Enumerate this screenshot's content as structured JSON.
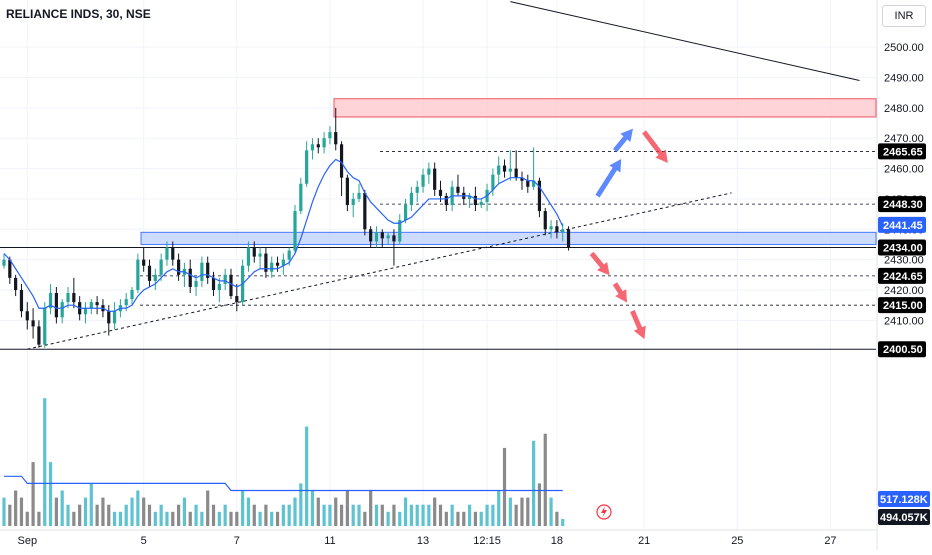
{
  "header": {
    "title": "RELIANCE INDS, 30, NSE",
    "currency": "INR"
  },
  "chart_data": {
    "type": "candlestick",
    "symbol": "RELIANCE INDS",
    "interval": "30",
    "exchange": "NSE",
    "currency": "INR",
    "ylim": [
      2392,
      2504
    ],
    "y_ticks": [
      2500,
      2490,
      2480,
      2470,
      2460,
      2450,
      2440,
      2430,
      2420,
      2410
    ],
    "x_ticks": [
      {
        "label": "Sep",
        "i": 4
      },
      {
        "label": "5",
        "i": 24
      },
      {
        "label": "7",
        "i": 40
      },
      {
        "label": "11",
        "i": 56
      },
      {
        "label": "13",
        "i": 72
      },
      {
        "label": "12:15",
        "i": 83
      },
      {
        "label": "18",
        "i": 95
      },
      {
        "label": "21",
        "i": 110
      },
      {
        "label": "25",
        "i": 126
      },
      {
        "label": "27",
        "i": 142
      }
    ],
    "candles": [
      [
        2428,
        2432,
        2427,
        2430
      ],
      [
        2430,
        2431,
        2422,
        2424
      ],
      [
        2424,
        2425,
        2418,
        2420
      ],
      [
        2420,
        2422,
        2411,
        2413
      ],
      [
        2413,
        2416,
        2407,
        2410
      ],
      [
        2410,
        2414,
        2404,
        2408
      ],
      [
        2408,
        2410,
        2401,
        2402
      ],
      [
        2402,
        2416,
        2401,
        2414
      ],
      [
        2414,
        2422,
        2412,
        2419
      ],
      [
        2419,
        2421,
        2409,
        2411
      ],
      [
        2411,
        2417,
        2409,
        2416
      ],
      [
        2416,
        2421,
        2414,
        2419
      ],
      [
        2419,
        2424,
        2414,
        2416
      ],
      [
        2416,
        2418,
        2410,
        2412
      ],
      [
        2412,
        2416,
        2409,
        2414
      ],
      [
        2414,
        2417,
        2412,
        2416
      ],
      [
        2416,
        2418,
        2412,
        2415
      ],
      [
        2415,
        2417,
        2411,
        2413
      ],
      [
        2413,
        2415,
        2405,
        2409
      ],
      [
        2409,
        2416,
        2407,
        2413
      ],
      [
        2413,
        2417,
        2411,
        2415
      ],
      [
        2415,
        2419,
        2413,
        2417
      ],
      [
        2417,
        2421,
        2415,
        2420
      ],
      [
        2420,
        2432,
        2419,
        2430
      ],
      [
        2430,
        2434,
        2426,
        2428
      ],
      [
        2428,
        2430,
        2421,
        2423
      ],
      [
        2423,
        2427,
        2420,
        2425
      ],
      [
        2425,
        2432,
        2423,
        2430
      ],
      [
        2430,
        2436,
        2428,
        2434
      ],
      [
        2434,
        2436,
        2428,
        2430
      ],
      [
        2430,
        2432,
        2423,
        2425
      ],
      [
        2425,
        2429,
        2421,
        2427
      ],
      [
        2427,
        2430,
        2419,
        2421
      ],
      [
        2421,
        2425,
        2418,
        2423
      ],
      [
        2423,
        2431,
        2421,
        2429
      ],
      [
        2429,
        2431,
        2422,
        2424
      ],
      [
        2424,
        2426,
        2418,
        2420
      ],
      [
        2420,
        2424,
        2416,
        2422
      ],
      [
        2422,
        2427,
        2420,
        2425
      ],
      [
        2425,
        2427,
        2417,
        2418
      ],
      [
        2418,
        2422,
        2413,
        2416
      ],
      [
        2416,
        2430,
        2415,
        2428
      ],
      [
        2428,
        2436,
        2426,
        2434
      ],
      [
        2434,
        2436,
        2429,
        2431
      ],
      [
        2431,
        2434,
        2427,
        2432
      ],
      [
        2432,
        2434,
        2424,
        2426
      ],
      [
        2426,
        2431,
        2424,
        2429
      ],
      [
        2429,
        2431,
        2426,
        2428
      ],
      [
        2428,
        2432,
        2425,
        2430
      ],
      [
        2430,
        2434,
        2428,
        2433
      ],
      [
        2433,
        2448,
        2432,
        2446
      ],
      [
        2446,
        2457,
        2445,
        2455
      ],
      [
        2455,
        2469,
        2454,
        2466
      ],
      [
        2466,
        2470,
        2463,
        2468
      ],
      [
        2468,
        2470,
        2465,
        2467
      ],
      [
        2467,
        2472,
        2465,
        2470
      ],
      [
        2470,
        2474,
        2468,
        2472
      ],
      [
        2472,
        2480,
        2466,
        2468
      ],
      [
        2468,
        2469,
        2451,
        2457
      ],
      [
        2457,
        2458,
        2446,
        2448
      ],
      [
        2448,
        2452,
        2444,
        2450
      ],
      [
        2450,
        2455,
        2449,
        2452
      ],
      [
        2452,
        2453,
        2438,
        2440
      ],
      [
        2440,
        2441,
        2434,
        2436
      ],
      [
        2436,
        2441,
        2434,
        2439
      ],
      [
        2439,
        2440,
        2434,
        2437
      ],
      [
        2437,
        2439,
        2435,
        2438
      ],
      [
        2438,
        2440,
        2428,
        2436
      ],
      [
        2436,
        2445,
        2435,
        2443
      ],
      [
        2443,
        2450,
        2442,
        2448
      ],
      [
        2448,
        2454,
        2446,
        2452
      ],
      [
        2452,
        2456,
        2449,
        2454
      ],
      [
        2454,
        2460,
        2452,
        2458
      ],
      [
        2458,
        2462,
        2455,
        2460
      ],
      [
        2460,
        2462,
        2451,
        2453
      ],
      [
        2453,
        2456,
        2449,
        2451
      ],
      [
        2451,
        2452,
        2446,
        2448
      ],
      [
        2448,
        2456,
        2446,
        2454
      ],
      [
        2454,
        2458,
        2451,
        2452
      ],
      [
        2452,
        2454,
        2448,
        2450
      ],
      [
        2450,
        2452,
        2447,
        2451
      ],
      [
        2451,
        2454,
        2446,
        2448
      ],
      [
        2448,
        2450,
        2447,
        2449
      ],
      [
        2449,
        2455,
        2446,
        2453
      ],
      [
        2453,
        2460,
        2451,
        2458
      ],
      [
        2458,
        2464,
        2455,
        2461
      ],
      [
        2461,
        2463,
        2457,
        2459
      ],
      [
        2459,
        2466,
        2456,
        2460
      ],
      [
        2460,
        2466,
        2456,
        2457
      ],
      [
        2457,
        2459,
        2453,
        2456
      ],
      [
        2456,
        2458,
        2452,
        2454
      ],
      [
        2454,
        2467,
        2453,
        2456
      ],
      [
        2456,
        2457,
        2444,
        2446
      ],
      [
        2446,
        2447,
        2438,
        2440
      ],
      [
        2440,
        2443,
        2437,
        2441
      ],
      [
        2441,
        2443,
        2437,
        2439
      ],
      [
        2439,
        2442,
        2436,
        2440
      ],
      [
        2440,
        2441,
        2433,
        2434
      ]
    ],
    "ema_line": {
      "name": "Moving average",
      "color": "#2962ff",
      "values": [
        2432,
        2430,
        2427,
        2424,
        2421,
        2418,
        2414,
        2414,
        2415,
        2414,
        2414,
        2415,
        2415,
        2414,
        2414,
        2414,
        2414,
        2414,
        2413,
        2413,
        2414,
        2414,
        2415,
        2418,
        2420,
        2421,
        2422,
        2424,
        2426,
        2427,
        2426,
        2426,
        2425,
        2424,
        2425,
        2425,
        2424,
        2423,
        2423,
        2422,
        2421,
        2422,
        2424,
        2426,
        2427,
        2427,
        2427,
        2427,
        2428,
        2429,
        2432,
        2437,
        2443,
        2449,
        2454,
        2458,
        2461,
        2463,
        2462,
        2459,
        2457,
        2456,
        2452,
        2449,
        2447,
        2445,
        2443,
        2442,
        2442,
        2443,
        2444,
        2446,
        2448,
        2450,
        2450,
        2450,
        2450,
        2451,
        2451,
        2451,
        2451,
        2450,
        2450,
        2451,
        2453,
        2455,
        2456,
        2457,
        2457,
        2457,
        2456,
        2456,
        2454,
        2451,
        2448,
        2445,
        2441
      ]
    },
    "volume": {
      "ylabels": [
        "517.128K",
        "494.057K"
      ],
      "values": [
        4,
        3,
        5,
        4,
        2,
        9,
        2,
        18,
        9,
        4,
        5,
        3,
        2,
        3,
        4,
        6,
        3,
        4,
        3,
        2,
        2,
        3,
        4,
        5,
        4,
        3,
        2,
        3,
        2,
        2,
        3,
        4,
        2,
        3,
        2,
        5,
        3,
        2,
        3,
        2,
        2,
        5,
        4,
        3,
        2,
        3,
        2,
        2,
        3,
        3,
        4,
        6,
        14,
        5,
        4,
        3,
        3,
        4,
        3,
        5,
        3,
        3,
        2,
        5,
        3,
        3,
        2,
        3,
        2,
        4,
        3,
        3,
        3,
        3,
        4,
        3,
        2,
        3,
        2,
        2,
        3,
        2,
        2,
        3,
        3,
        5,
        11,
        4,
        3,
        4,
        4,
        12,
        6,
        13,
        4,
        2,
        1
      ],
      "avg": [
        7,
        7,
        7,
        7,
        6,
        6,
        6,
        6,
        6,
        6,
        6,
        6,
        6,
        6,
        6,
        6,
        6,
        6,
        6,
        6,
        6,
        6,
        6,
        6,
        6,
        6,
        6,
        6,
        6,
        6,
        6,
        6,
        6,
        6,
        6,
        6,
        6,
        6,
        6,
        5,
        5,
        5,
        5,
        5,
        5,
        5,
        5,
        5,
        5,
        5,
        5,
        5,
        5,
        5,
        5,
        5,
        5,
        5,
        5,
        5,
        5,
        5,
        5,
        5,
        5,
        5,
        5,
        5,
        5,
        5,
        5,
        5,
        5,
        5,
        5,
        5,
        5,
        5,
        5,
        5,
        5,
        5,
        5,
        5,
        5,
        5,
        5,
        5,
        5,
        5,
        5,
        5,
        5,
        5,
        5,
        5,
        5
      ]
    },
    "zones": [
      {
        "name": "resistance-zone",
        "y1": 2477,
        "y2": 2483,
        "color": "#ffcdd2",
        "border": "#f23645"
      },
      {
        "name": "support-zone",
        "y1": 2435,
        "y2": 2439,
        "color": "#c5d5ff",
        "border": "#2962ff"
      }
    ],
    "levels": [
      {
        "value": 2465.65,
        "label": "2465.65",
        "style": "dashed",
        "label_bg": "#000000"
      },
      {
        "value": 2448.3,
        "label": "2448.30",
        "style": "dashed",
        "label_bg": "#000000"
      },
      {
        "value": 2434.0,
        "label": "2434.00",
        "style": "solid",
        "label_bg": "#000000"
      },
      {
        "value": 2424.65,
        "label": "2424.65",
        "style": "dashed",
        "label_bg": "#000000"
      },
      {
        "value": 2415.0,
        "label": "2415.00",
        "style": "dashed",
        "label_bg": "#000000"
      },
      {
        "value": 2400.5,
        "label": "2400.50",
        "style": "solid",
        "label_bg": "#000000"
      }
    ],
    "ma_price_label": {
      "value": 2441.45,
      "label": "2441.45",
      "color": "#2962ff"
    },
    "trendlines": [
      {
        "name": "upper-trendline",
        "from": [
          87,
          2515
        ],
        "to": [
          147,
          2489
        ],
        "style": "solid"
      },
      {
        "name": "lower-trendline",
        "from": [
          4,
          2400.5
        ],
        "to": [
          125,
          2452
        ],
        "style": "dashed"
      }
    ],
    "arrows": [
      {
        "name": "blue-arrow-up-1",
        "from": [
          102,
          2451
        ],
        "to": [
          106,
          2463
        ],
        "color": "#2962ff"
      },
      {
        "name": "blue-arrow-up-2",
        "from": [
          105,
          2466
        ],
        "to": [
          108,
          2473
        ],
        "color": "#2962ff"
      },
      {
        "name": "red-arrow-down-1",
        "from": [
          110,
          2472
        ],
        "to": [
          114,
          2462
        ],
        "color": "#f23645"
      },
      {
        "name": "red-arrow-down-2",
        "from": [
          101,
          2432
        ],
        "to": [
          104,
          2425
        ],
        "color": "#f23645"
      },
      {
        "name": "red-arrow-down-3",
        "from": [
          105,
          2422
        ],
        "to": [
          107,
          2416
        ],
        "color": "#f23645"
      },
      {
        "name": "red-arrow-down-4",
        "from": [
          108,
          2413
        ],
        "to": [
          110,
          2404
        ],
        "color": "#f23645"
      }
    ],
    "colors": {
      "up": "#26a69a",
      "down": "#131722",
      "vol_up": "#5ec3d1",
      "vol_down": "#8a8a8a"
    }
  }
}
